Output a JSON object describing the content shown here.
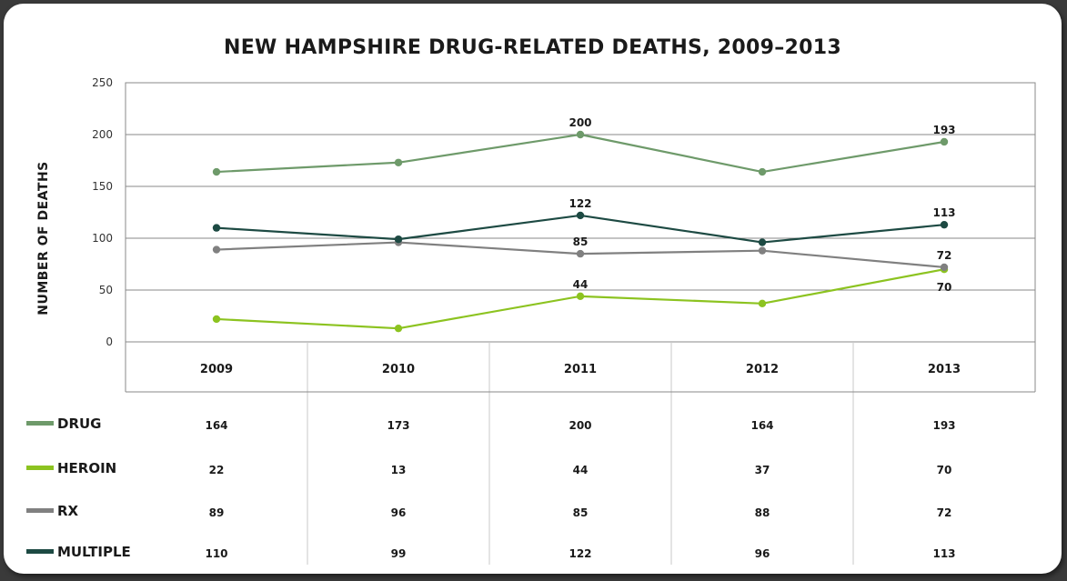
{
  "chart_data": {
    "type": "line",
    "title": "NEW HAMPSHIRE DRUG-RELATED DEATHS, 2009–2013",
    "ylabel": "NUMBER OF DEATHS",
    "xlabel": "",
    "ylim": [
      0,
      250
    ],
    "yticks": [
      0,
      50,
      100,
      150,
      200,
      250
    ],
    "grid": true,
    "legend_placement": "bottom-left (data table)",
    "categories": [
      "2009",
      "2010",
      "2011",
      "2012",
      "2013"
    ],
    "series": [
      {
        "name": "DRUG",
        "color": "#6e9a6a",
        "values": [
          164,
          173,
          200,
          164,
          193
        ],
        "labels": [
          "164",
          "173",
          "200",
          "164",
          "193"
        ],
        "point_labels": {
          "2": "200",
          "4": "193"
        }
      },
      {
        "name": "HEROIN",
        "color": "#8cc320",
        "values": [
          22,
          13,
          44,
          37,
          70
        ],
        "labels": [
          "22",
          "13",
          "44",
          "37",
          "70"
        ],
        "point_labels": {
          "2": "44",
          "4": "70"
        }
      },
      {
        "name": "RX",
        "color": "#808080",
        "values": [
          89,
          96,
          85,
          88,
          72
        ],
        "labels": [
          "89",
          "96",
          "85",
          "88",
          "72"
        ],
        "point_labels": {
          "2": "85",
          "4": "72"
        }
      },
      {
        "name": "MULTIPLE",
        "color": "#1d4a43",
        "values": [
          110,
          99,
          122,
          96,
          113
        ],
        "labels": [
          "110",
          "99",
          "122",
          "96",
          "113"
        ],
        "point_labels": {
          "2": "122",
          "4": "113"
        }
      }
    ]
  }
}
